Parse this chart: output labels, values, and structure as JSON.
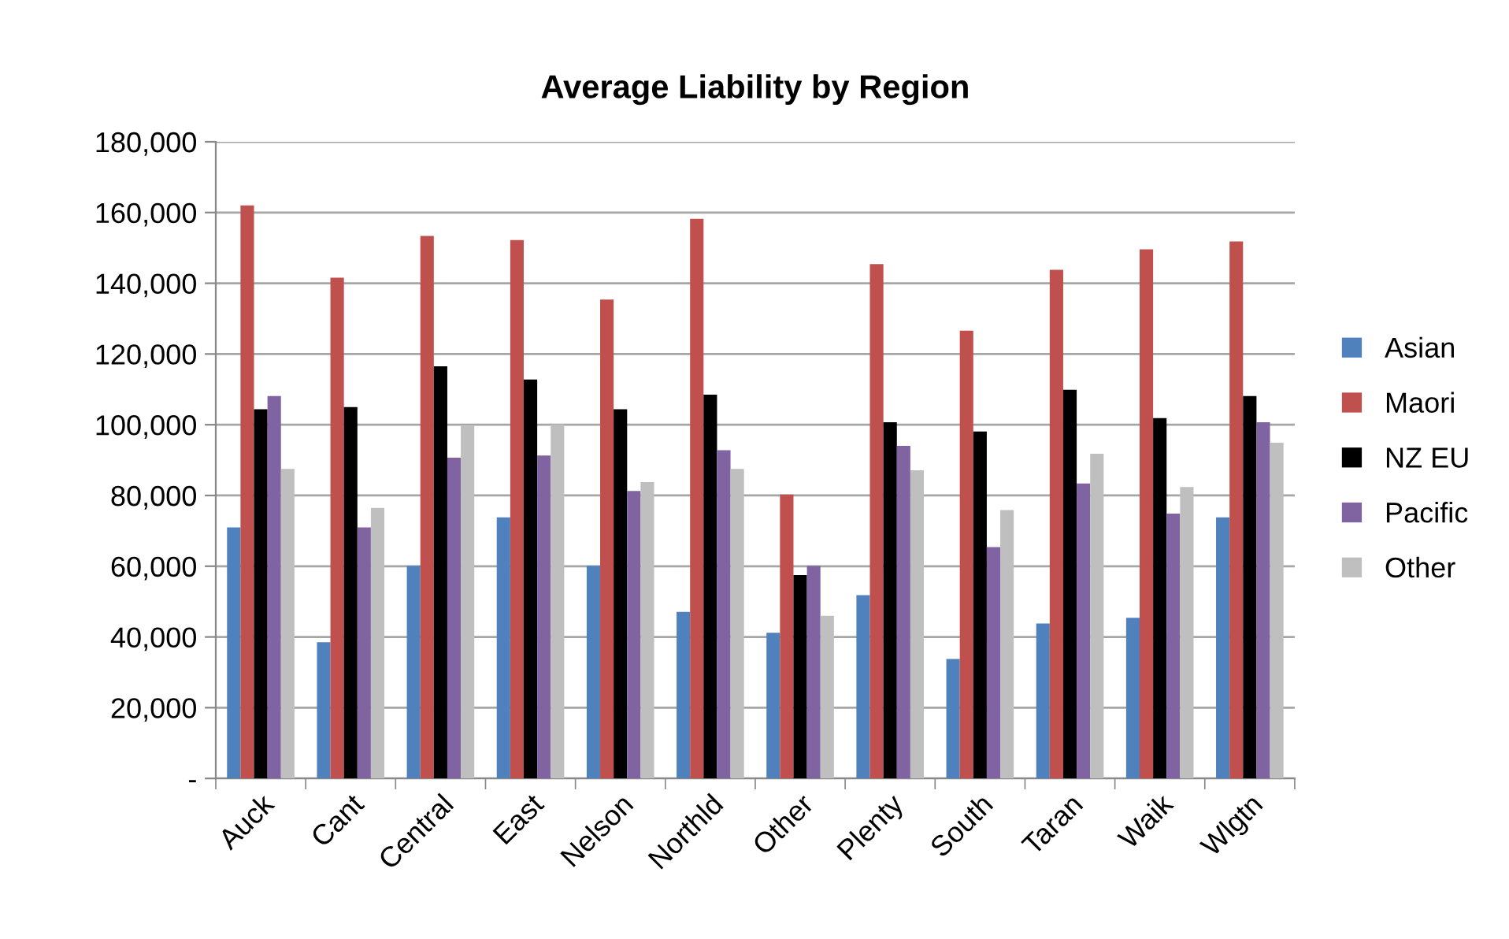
{
  "chart_data": {
    "type": "bar",
    "title": "Average Liability by Region",
    "categories": [
      "Auck",
      "Cant",
      "Central",
      "East",
      "Nelson",
      "Northld",
      "Other",
      "Plenty",
      "South",
      "Taran",
      "Waik",
      "Wlgtn"
    ],
    "series": [
      {
        "name": "Asian",
        "color": "#4f81bd",
        "values": [
          71000,
          38500,
          60100,
          73800,
          60100,
          47100,
          41200,
          51800,
          33800,
          43800,
          45400,
          73800
        ]
      },
      {
        "name": "Maori",
        "color": "#c0504d",
        "values": [
          162000,
          141600,
          153400,
          152200,
          135400,
          158200,
          80300,
          145400,
          126600,
          143800,
          149600,
          151800
        ]
      },
      {
        "name": "NZ EU",
        "color": "#000000",
        "values": [
          104400,
          105000,
          116500,
          112800,
          104400,
          108500,
          57500,
          100700,
          98100,
          109900,
          101900,
          108100
        ]
      },
      {
        "name": "Pacific",
        "color": "#8064a2",
        "values": [
          108100,
          71000,
          90700,
          91300,
          81300,
          92800,
          60100,
          94000,
          65400,
          83400,
          74900,
          100700
        ]
      },
      {
        "name": "Other",
        "color": "#bfbfbf",
        "values": [
          87500,
          76500,
          99700,
          100100,
          83800,
          87500,
          46000,
          87100,
          75900,
          91800,
          82400,
          94900
        ]
      }
    ],
    "ylim": [
      0,
      180000
    ],
    "yticks": [
      {
        "value": 0,
        "label": "-"
      },
      {
        "value": 20000,
        "label": "20,000"
      },
      {
        "value": 40000,
        "label": "40,000"
      },
      {
        "value": 60000,
        "label": "60,000"
      },
      {
        "value": 80000,
        "label": "80,000"
      },
      {
        "value": 100000,
        "label": "100,000"
      },
      {
        "value": 120000,
        "label": "120,000"
      },
      {
        "value": 140000,
        "label": "140,000"
      },
      {
        "value": 160000,
        "label": "160,000"
      },
      {
        "value": 180000,
        "label": "180,000"
      }
    ],
    "grid": "y",
    "legend": "right"
  }
}
